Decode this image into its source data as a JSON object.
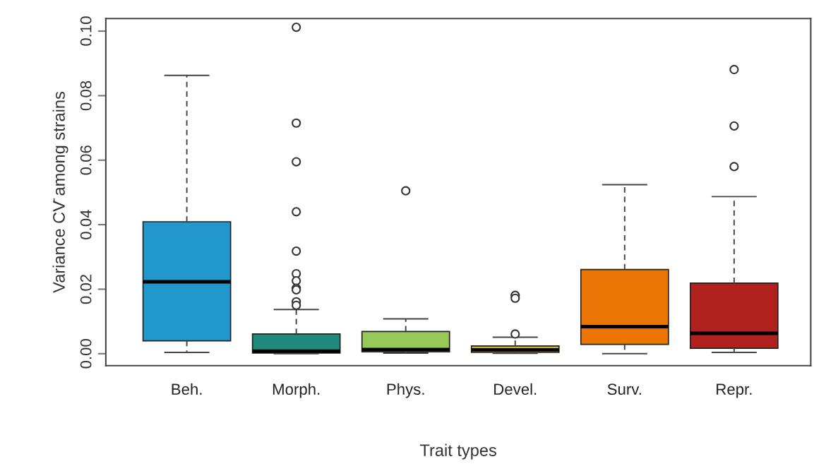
{
  "chart_data": {
    "type": "box",
    "xlabel": "Trait types",
    "ylabel": "Variance CV̄ among strains",
    "categories": [
      "Beh.",
      "Morph.",
      "Phys.",
      "Devel.",
      "Surv.",
      "Repr."
    ],
    "colors": [
      "#2197cc",
      "#1e8a7c",
      "#97c85a",
      "#c8b31e",
      "#ec7603",
      "#b0201c"
    ],
    "boxes": [
      {
        "low": 0.0004,
        "q1": 0.004,
        "median": 0.0223,
        "q3": 0.0409,
        "high": 0.0863
      },
      {
        "low": 0.0,
        "q1": 0.0002,
        "median": 0.0008,
        "q3": 0.0061,
        "high": 0.0137,
        "outliers": [
          0.1012,
          0.0715,
          0.0595,
          0.044,
          0.0318,
          0.0248,
          0.0226,
          0.0203,
          0.0198,
          0.0161,
          0.015
        ]
      },
      {
        "low": 0.0002,
        "q1": 0.0006,
        "median": 0.0013,
        "q3": 0.0069,
        "high": 0.0108,
        "outliers": [
          0.0505
        ]
      },
      {
        "low": 0.0001,
        "q1": 0.0004,
        "median": 0.0012,
        "q3": 0.0024,
        "high": 0.0051,
        "outliers": [
          0.0181,
          0.0172,
          0.0061
        ]
      },
      {
        "low": 0.0,
        "q1": 0.0029,
        "median": 0.0084,
        "q3": 0.0261,
        "high": 0.0524
      },
      {
        "low": 0.0004,
        "q1": 0.0017,
        "median": 0.0063,
        "q3": 0.0219,
        "high": 0.0487,
        "outliers": [
          0.0881,
          0.0706,
          0.058
        ]
      }
    ],
    "ylim": [
      -0.0037,
      0.1039
    ],
    "yticks": [
      {
        "value": 0.0,
        "label": "0.00"
      },
      {
        "value": 0.02,
        "label": "0.02"
      },
      {
        "value": 0.04,
        "label": "0.04"
      },
      {
        "value": 0.06,
        "label": "0.06"
      },
      {
        "value": 0.08,
        "label": "0.08"
      },
      {
        "value": 0.1,
        "label": "0.10"
      }
    ],
    "grid": false,
    "legend": false
  }
}
